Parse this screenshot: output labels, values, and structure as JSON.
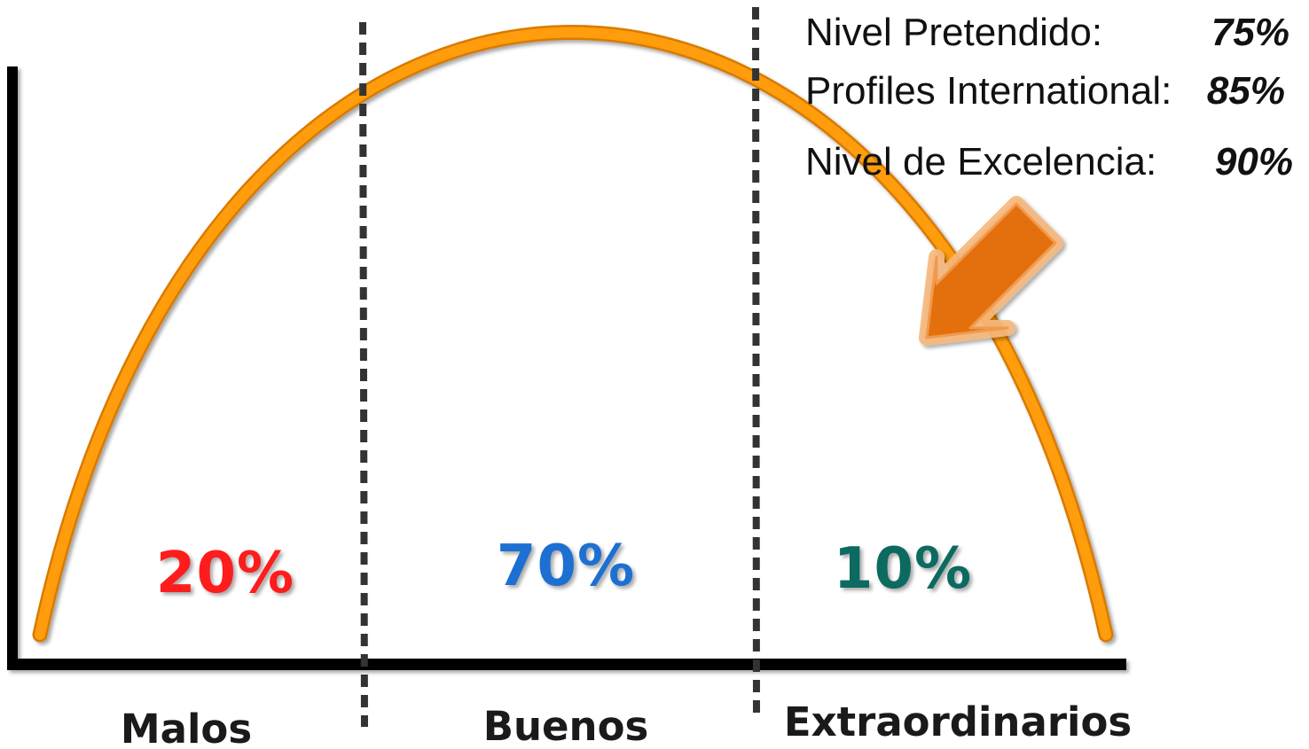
{
  "levels": [
    {
      "label": "Nivel Pretendido:",
      "value": "75%"
    },
    {
      "label": "Profiles International:",
      "value": "85%"
    },
    {
      "label": "Nivel de Excelencia:",
      "value": "90%"
    }
  ],
  "segments": [
    {
      "name": "Malos",
      "percent": "20%",
      "color": "#ff1a1a"
    },
    {
      "name": "Buenos",
      "percent": "70%",
      "color": "#1f6fd1"
    },
    {
      "name": "Extraordinarios",
      "percent": "10%",
      "color": "#0e6b60"
    }
  ],
  "colors": {
    "curve": "#ff9d0a",
    "curve_edge": "#d97a00",
    "axis": "#000000",
    "divider": "#333333",
    "arrow_fill": "#e4700f",
    "arrow_edge": "#f6b77c"
  },
  "arrow_icon": "down-left-arrow-icon"
}
